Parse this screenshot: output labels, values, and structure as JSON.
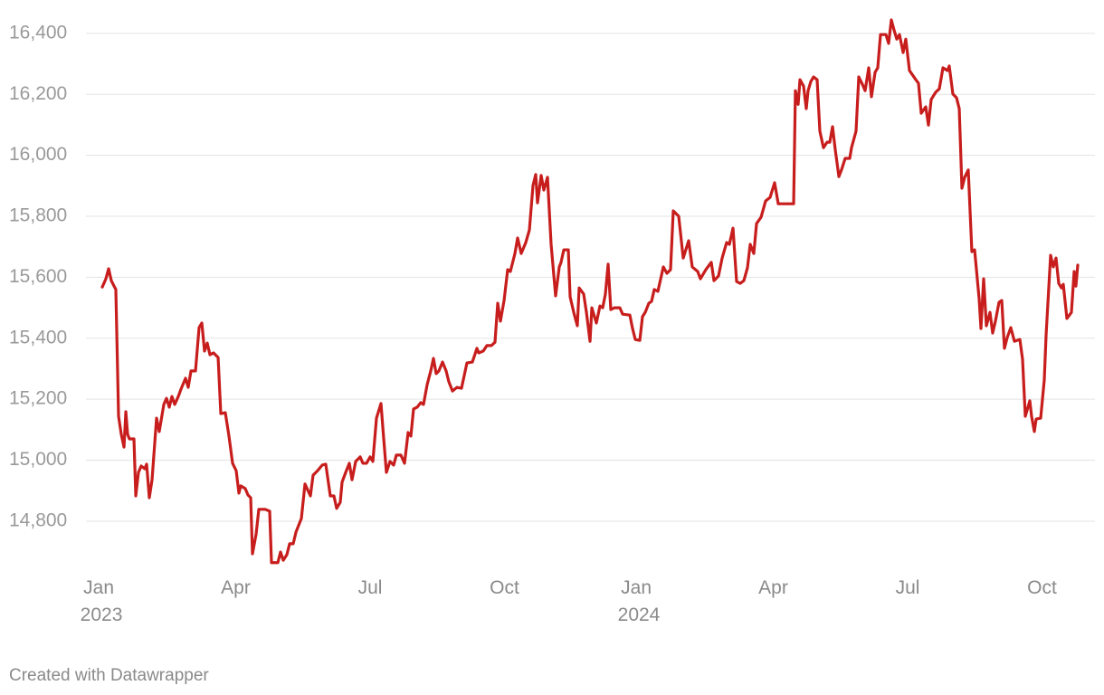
{
  "chart_data": {
    "type": "line",
    "color": "#c71e1d",
    "grid": true,
    "credit": "Created with Datawrapper",
    "xlim": [
      2022.97,
      2024.85
    ],
    "ylim": [
      14650,
      16450
    ],
    "xticks": [
      {
        "value": 2023,
        "label": "Jan 2023"
      },
      {
        "value": 2023.25,
        "label": "Apr"
      },
      {
        "value": 2023.5,
        "label": "Jul"
      },
      {
        "value": 2023.75,
        "label": "Oct"
      },
      {
        "value": 2024,
        "label": "Jan 2024"
      },
      {
        "value": 2024.25,
        "label": "Apr"
      },
      {
        "value": 2024.5,
        "label": "Jul"
      },
      {
        "value": 2024.75,
        "label": "Oct"
      }
    ],
    "yticks": [
      {
        "value": 14800,
        "label": "14,800"
      },
      {
        "value": 15000,
        "label": "15,000"
      },
      {
        "value": 15200,
        "label": "15,200"
      },
      {
        "value": 15400,
        "label": "15,400"
      },
      {
        "value": 15600,
        "label": "15,600"
      },
      {
        "value": 15800,
        "label": "15,800"
      },
      {
        "value": 16000,
        "label": "16,000"
      },
      {
        "value": 16200,
        "label": "16,200"
      },
      {
        "value": 16400,
        "label": "16,400"
      }
    ],
    "x": [
      2023.0017,
      2023.0084,
      2023.0135,
      2023.0185,
      2023.0236,
      2023.0269,
      2023.032,
      2023.037,
      2023.0421,
      2023.0455,
      2023.0488,
      2023.0522,
      2023.0606,
      2023.064,
      2023.069,
      2023.0741,
      2023.0808,
      2023.0842,
      2023.0892,
      2023.0943,
      2023.1027,
      2023.1077,
      2023.1162,
      2023.1212,
      2023.1263,
      2023.1313,
      2023.1364,
      2023.1431,
      2023.1481,
      2023.1566,
      2023.1616,
      2023.1667,
      2023.1751,
      2023.1818,
      2023.1869,
      2023.1919,
      2023.197,
      2023.202,
      2023.2088,
      2023.2172,
      2023.2222,
      2023.2306,
      2023.2374,
      2023.2441,
      2023.2508,
      2023.2559,
      2023.2593,
      2023.2677,
      2023.2727,
      2023.2778,
      2023.2811,
      2023.2879,
      2023.2929,
      2023.3047,
      2023.3131,
      2023.3165,
      2023.3283,
      2023.3333,
      2023.3384,
      2023.3451,
      2023.3502,
      2023.3569,
      2023.362,
      2023.3721,
      2023.3788,
      2023.3889,
      2023.3939,
      2023.4024,
      2023.4108,
      2023.4175,
      2023.4259,
      2023.4327,
      2023.4377,
      2023.4444,
      2023.4478,
      2023.4545,
      2023.4613,
      2023.4663,
      2023.4731,
      2023.4815,
      2023.4865,
      2023.4933,
      2023.5,
      2023.5051,
      2023.5118,
      2023.5202,
      2023.5253,
      2023.5303,
      2023.537,
      2023.5438,
      2023.5488,
      2023.5572,
      2023.564,
      2023.5707,
      2023.5758,
      2023.5808,
      2023.5875,
      2023.5943,
      2023.5993,
      2023.6061,
      2023.6128,
      2023.6178,
      2023.6229,
      2023.6279,
      2023.6347,
      2023.6414,
      2023.6465,
      2023.6532,
      2023.6616,
      2023.67,
      2023.6801,
      2023.6902,
      2023.6987,
      2023.702,
      2023.7104,
      2023.7172,
      2023.7256,
      2023.7323,
      2023.7374,
      2023.7424,
      2023.7492,
      2023.7559,
      2023.7609,
      2023.7694,
      2023.7744,
      2023.7811,
      2023.7896,
      2023.7963,
      2023.803,
      2023.8081,
      2023.8114,
      2023.8182,
      2023.8232,
      2023.83,
      2023.8367,
      2023.8451,
      2023.8519,
      2023.8552,
      2023.8603,
      2023.8687,
      2023.8721,
      2023.8788,
      2023.8855,
      2023.8889,
      2023.8973,
      2023.9024,
      2023.9091,
      2023.9125,
      2023.9209,
      2023.9276,
      2023.9327,
      2023.9377,
      2023.9428,
      2023.9478,
      2023.9545,
      2023.9646,
      2023.9697,
      2023.9832,
      2023.9882,
      2023.9933,
      2024.0017,
      2024.0067,
      2024.0118,
      2024.0185,
      2024.0236,
      2024.0286,
      2024.0354,
      2024.0455,
      2024.0522,
      2024.0589,
      2024.064,
      2024.0741,
      2024.0825,
      2024.0926,
      2024.0993,
      2024.1094,
      2024.1145,
      2024.1246,
      2024.1347,
      2024.1397,
      2024.1481,
      2024.1549,
      2024.1633,
      2024.1684,
      2024.1751,
      2024.1818,
      2024.1886,
      2024.1953,
      2024.202,
      2024.2071,
      2024.2138,
      2024.2189,
      2024.2273,
      2024.2357,
      2024.2441,
      2024.2525,
      2024.2593,
      2024.2677,
      2024.2778,
      2024.2879,
      2024.2912,
      2024.2963,
      2024.2997,
      2024.3064,
      2024.3114,
      2024.3148,
      2024.3199,
      2024.3249,
      2024.3316,
      2024.3367,
      2024.3434,
      2024.3502,
      2024.3552,
      2024.3603,
      2024.3653,
      2024.3721,
      2024.3771,
      2024.3838,
      2024.3923,
      2024.3956,
      2024.404,
      2024.4091,
      2024.4158,
      2024.4209,
      2024.4276,
      2024.4327,
      2024.4394,
      2024.4444,
      2024.4495,
      2024.4596,
      2024.4646,
      2024.4697,
      2024.4747,
      2024.4798,
      2024.4848,
      2024.4916,
      2024.4966,
      2024.5034,
      2024.5152,
      2024.5202,
      2024.5253,
      2024.5337,
      2024.5387,
      2024.5438,
      2024.5522,
      2024.5589,
      2024.5657,
      2024.5741,
      2024.5774,
      2024.5842,
      2024.5909,
      2024.596,
      2024.601,
      2024.6061,
      2024.6128,
      2024.6195,
      2024.6246,
      2024.633,
      2024.6364,
      2024.6414,
      2024.6465,
      2024.6532,
      2024.6582,
      2024.6633,
      2024.67,
      2024.6751,
      2024.6801,
      2024.6852,
      2024.6919,
      2024.6987,
      2024.7088,
      2024.7138,
      2024.7189,
      2024.7273,
      2024.7306,
      2024.7357,
      2024.7391,
      2024.7475,
      2024.7542,
      2024.7576,
      2024.766,
      2024.771,
      2024.7761,
      2024.7811,
      2024.7862,
      2024.7896,
      2024.7963,
      2024.8047,
      2024.8098,
      2024.8131,
      2024.8165
    ],
    "values": [
      15568,
      15595,
      15628,
      15589,
      15571,
      15560,
      15144,
      15085,
      15043,
      15159,
      15085,
      15070,
      15070,
      14883,
      14960,
      14981,
      14972,
      14987,
      14877,
      14936,
      15138,
      15094,
      15183,
      15203,
      15174,
      15209,
      15183,
      15209,
      15233,
      15269,
      15239,
      15293,
      15293,
      15435,
      15450,
      15358,
      15384,
      15346,
      15352,
      15337,
      15153,
      15156,
      15079,
      14990,
      14966,
      14892,
      14916,
      14907,
      14886,
      14877,
      14693,
      14758,
      14839,
      14839,
      14833,
      14664,
      14664,
      14699,
      14672,
      14690,
      14726,
      14726,
      14764,
      14809,
      14922,
      14883,
      14951,
      14966,
      14984,
      14987,
      14883,
      14883,
      14842,
      14862,
      14928,
      14960,
      14990,
      14936,
      14996,
      15011,
      14990,
      14990,
      15011,
      14996,
      15138,
      15186,
      15070,
      14960,
      14996,
      14984,
      15017,
      15017,
      14990,
      15091,
      15079,
      15168,
      15174,
      15189,
      15183,
      15248,
      15293,
      15334,
      15284,
      15293,
      15322,
      15293,
      15257,
      15227,
      15239,
      15236,
      15319,
      15322,
      15367,
      15352,
      15358,
      15376,
      15376,
      15387,
      15515,
      15456,
      15524,
      15625,
      15619,
      15678,
      15729,
      15678,
      15714,
      15755,
      15901,
      15937,
      15844,
      15934,
      15886,
      15928,
      15708,
      15539,
      15634,
      15649,
      15690,
      15690,
      15536,
      15485,
      15441,
      15565,
      15545,
      15485,
      15390,
      15500,
      15450,
      15506,
      15500,
      15545,
      15643,
      15494,
      15500,
      15500,
      15479,
      15476,
      15432,
      15396,
      15393,
      15471,
      15485,
      15515,
      15521,
      15560,
      15554,
      15634,
      15613,
      15625,
      15818,
      15800,
      15663,
      15720,
      15634,
      15619,
      15595,
      15625,
      15649,
      15589,
      15604,
      15663,
      15714,
      15708,
      15761,
      15586,
      15580,
      15589,
      15631,
      15708,
      15678,
      15776,
      15797,
      15850,
      15862,
      15910,
      15841,
      15841,
      15841,
      15841,
      16212,
      16167,
      16248,
      16227,
      16153,
      16212,
      16242,
      16257,
      16248,
      16079,
      16025,
      16043,
      16043,
      16094,
      16019,
      15930,
      15953,
      15990,
      15990,
      16025,
      16079,
      16257,
      16233,
      16212,
      16287,
      16192,
      16272,
      16287,
      16396,
      16396,
      16367,
      16444,
      16411,
      16381,
      16396,
      16337,
      16381,
      16278,
      16248,
      16236,
      16138,
      16159,
      16099,
      16183,
      16207,
      16218,
      16287,
      16278,
      16293,
      16201,
      16189,
      16153,
      15892,
      15928,
      15952,
      15684,
      15690,
      15530,
      15432,
      15595,
      15441,
      15485,
      15417,
      15456,
      15518,
      15524,
      15367,
      15402,
      15435,
      15390,
      15396,
      15331,
      15144,
      15195,
      15144,
      15094,
      15135,
      15138,
      15263,
      15411,
      15672,
      15634,
      15663,
      15580,
      15565,
      15577,
      15465,
      15485,
      15619,
      15571,
      15640
    ]
  }
}
